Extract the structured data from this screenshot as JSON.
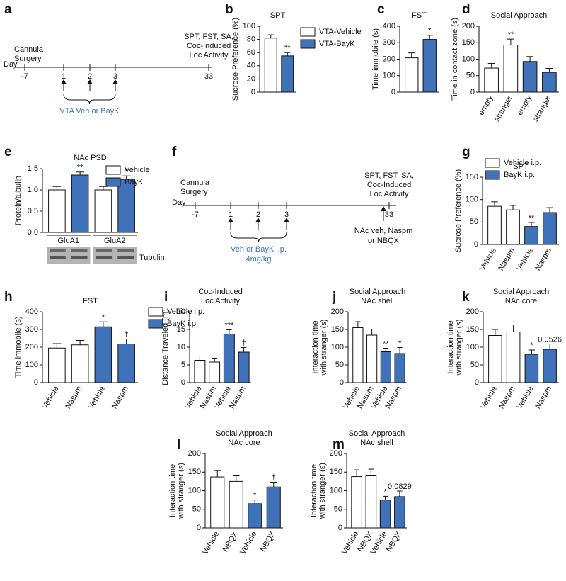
{
  "timelines": [
    {
      "panel": "a",
      "day_label": "Day",
      "days": [
        -7,
        1,
        2,
        3,
        33
      ],
      "start_label": [
        "Cannula",
        "Surgery"
      ],
      "end_label": [
        "SPT, FST, SA,",
        "Coc-Induced",
        "Loc Activity"
      ],
      "treatment_label": [
        "VTA Veh or BayK"
      ]
    },
    {
      "panel": "f",
      "day_label": "Day",
      "days": [
        -7,
        1,
        2,
        3,
        33
      ],
      "start_label": [
        "Cannula",
        "Surgery"
      ],
      "end_label": [
        "SPT, FST, SA,",
        "Coc-Induced",
        "Loc Activity"
      ],
      "treatment_label": [
        "Veh or BayK i.p.",
        "4mg/kg"
      ],
      "end_treatment_label": [
        "NAc veh, Naspm",
        "or NBQX"
      ]
    }
  ],
  "chart_data": [
    {
      "type": "bar",
      "panel": "b",
      "title": [
        "SPT"
      ],
      "ylabel": [
        "Sucrose Preference (%)"
      ],
      "categories": [
        null,
        null
      ],
      "values": [
        82,
        55
      ],
      "errors": [
        5,
        5
      ],
      "annotations": [
        null,
        "**"
      ],
      "bar_colors": [
        "#ffffff",
        "#3f72b8"
      ],
      "ylim": [
        0,
        100
      ],
      "yticks": [
        0,
        20,
        40,
        60,
        80,
        100
      ],
      "legend": [
        {
          "name": "VTA-Vehicle",
          "color": "#ffffff"
        },
        {
          "name": "VTA-BayK",
          "color": "#3f72b8"
        }
      ]
    },
    {
      "type": "bar",
      "panel": "c",
      "title": [
        "FST"
      ],
      "ylabel": [
        "Time immobile (s)"
      ],
      "categories": [
        null,
        null
      ],
      "values": [
        208,
        320
      ],
      "errors": [
        30,
        25
      ],
      "annotations": [
        null,
        "*"
      ],
      "bar_colors": [
        "#ffffff",
        "#3f72b8"
      ],
      "ylim": [
        0,
        400
      ],
      "yticks": [
        0,
        100,
        200,
        300,
        400
      ]
    },
    {
      "type": "bar",
      "panel": "d",
      "title": [
        "Social Approach"
      ],
      "ylabel": [
        "Time in contact zone (s)"
      ],
      "categories": [
        "empty",
        "stranger",
        "empty",
        "stranger"
      ],
      "values": [
        73,
        143,
        93,
        60
      ],
      "errors": [
        14,
        18,
        15,
        12
      ],
      "annotations": [
        null,
        "**",
        null,
        null
      ],
      "bar_colors": [
        "#ffffff",
        "#ffffff",
        "#3f72b8",
        "#3f72b8"
      ],
      "ylim": [
        0,
        200
      ],
      "yticks": [
        0,
        50,
        100,
        150,
        200
      ]
    },
    {
      "type": "bar",
      "panel": "e",
      "title": [
        "NAc PSD"
      ],
      "ylabel": [
        "Protein/tubulin"
      ],
      "categories": [
        null,
        null,
        null,
        null
      ],
      "group_labels": [
        "GluA1",
        "GluA2"
      ],
      "values": [
        1.0,
        1.35,
        1.0,
        1.25
      ],
      "errors": [
        0.08,
        0.07,
        0.08,
        0.08
      ],
      "annotations": [
        null,
        "**",
        null,
        "*"
      ],
      "bar_colors": [
        "#ffffff",
        "#3f72b8",
        "#ffffff",
        "#3f72b8"
      ],
      "ylim": [
        0,
        1.5
      ],
      "yticks": [
        {
          "value": 0,
          "label": "0.0"
        },
        {
          "value": 0.5,
          "label": "0.5"
        },
        {
          "value": 1,
          "label": "1.0"
        },
        {
          "value": 1.5,
          "label": "1.5"
        }
      ],
      "legend": [
        {
          "name": "Vehicle",
          "color": "#ffffff"
        },
        {
          "name": "BayK",
          "color": "#3f72b8"
        }
      ],
      "blot_label": "Tubulin"
    },
    {
      "type": "bar",
      "panel": "g",
      "title": [
        "SPT"
      ],
      "ylabel": [
        "Sucrose Preference (%)"
      ],
      "categories": [
        "Vehicle",
        "Naspm",
        "Vehicle",
        "Naspm"
      ],
      "values": [
        85,
        77,
        40,
        71
      ],
      "errors": [
        10,
        10,
        9,
        11
      ],
      "annotations": [
        null,
        null,
        "**",
        null
      ],
      "bar_colors": [
        "#ffffff",
        "#ffffff",
        "#3f72b8",
        "#3f72b8"
      ],
      "ylim": [
        0,
        150
      ],
      "yticks": [
        0,
        50,
        100,
        150
      ],
      "legend": [
        {
          "name": "Vehicle i.p.",
          "color": "#ffffff"
        },
        {
          "name": "BayK i.p.",
          "color": "#3f72b8"
        }
      ]
    },
    {
      "type": "bar",
      "panel": "h",
      "title": [
        "FST"
      ],
      "ylabel": [
        "Time immobile (s)"
      ],
      "categories": [
        "Vehicle",
        "Naspm",
        "Vehicle",
        "Naspm"
      ],
      "values": [
        195,
        213,
        315,
        218
      ],
      "errors": [
        25,
        25,
        28,
        28
      ],
      "annotations": [
        null,
        null,
        "*",
        "†"
      ],
      "bar_colors": [
        "#ffffff",
        "#ffffff",
        "#3f72b8",
        "#3f72b8"
      ],
      "ylim": [
        0,
        400
      ],
      "yticks": [
        0,
        100,
        200,
        300,
        400
      ],
      "legend": [
        {
          "name": "Vehicle i.p.",
          "color": "#ffffff"
        },
        {
          "name": "BayK i.p.",
          "color": "#3f72b8"
        }
      ]
    },
    {
      "type": "bar",
      "panel": "i",
      "title": [
        "Coc-Induced",
        "Loc Activity"
      ],
      "ylabel": [
        "Distance Traveled (m)"
      ],
      "categories": [
        "Vehicle",
        "Naspm",
        "Vehicle",
        "Naspm"
      ],
      "values": [
        6.3,
        5.8,
        13.7,
        8.6
      ],
      "errors": [
        1.2,
        1.1,
        1.2,
        1.3
      ],
      "annotations": [
        null,
        null,
        "***",
        "†"
      ],
      "bar_colors": [
        "#ffffff",
        "#ffffff",
        "#3f72b8",
        "#3f72b8"
      ],
      "ylim": [
        0,
        20
      ],
      "yticks": [
        0,
        5,
        10,
        15,
        20
      ]
    },
    {
      "type": "bar",
      "panel": "j",
      "title": [
        "Social Approach",
        "NAc shell"
      ],
      "ylabel": [
        "Interaction time",
        "with stranger (s)"
      ],
      "categories": [
        "Vehicle",
        "Naspm",
        "Vehicle",
        "Naspm"
      ],
      "values": [
        155,
        134,
        87,
        82
      ],
      "errors": [
        17,
        17,
        10,
        17
      ],
      "annotations": [
        null,
        null,
        "**",
        "*"
      ],
      "bar_colors": [
        "#ffffff",
        "#ffffff",
        "#3f72b8",
        "#3f72b8"
      ],
      "ylim": [
        0,
        200
      ],
      "yticks": [
        0,
        50,
        100,
        150,
        200
      ]
    },
    {
      "type": "bar",
      "panel": "k",
      "title": [
        "Social Approach",
        "NAc core"
      ],
      "ylabel": [
        "Interaction time",
        "with stranger (s)"
      ],
      "categories": [
        "Vehicle",
        "Naspm",
        "Vehicle",
        "Naspm"
      ],
      "values": [
        133,
        143,
        80,
        94
      ],
      "errors": [
        17,
        20,
        12,
        15
      ],
      "annotations": [
        null,
        null,
        "*",
        "0.0526"
      ],
      "bar_colors": [
        "#ffffff",
        "#ffffff",
        "#3f72b8",
        "#3f72b8"
      ],
      "ylim": [
        0,
        200
      ],
      "yticks": [
        0,
        50,
        100,
        150,
        200
      ]
    },
    {
      "type": "bar",
      "panel": "l",
      "title": [
        "Social Approach",
        "NAc core"
      ],
      "ylabel": [
        "Interaction time",
        "with stranger (s)"
      ],
      "categories": [
        "Vehicle",
        "NBQX",
        "Vehicle",
        "NBQX"
      ],
      "values": [
        137,
        125,
        65,
        110
      ],
      "errors": [
        17,
        15,
        10,
        13
      ],
      "annotations": [
        null,
        null,
        "*",
        "†"
      ],
      "bar_colors": [
        "#ffffff",
        "#ffffff",
        "#3f72b8",
        "#3f72b8"
      ],
      "ylim": [
        0,
        200
      ],
      "yticks": [
        0,
        50,
        100,
        150,
        200
      ]
    },
    {
      "type": "bar",
      "panel": "m",
      "title": [
        "Social Approach",
        "NAc shell"
      ],
      "ylabel": [
        "Interaction time",
        "with stranger (s)"
      ],
      "categories": [
        "Vehicle",
        "NBQX",
        "Vehicle",
        "NBQX"
      ],
      "values": [
        138,
        140,
        75,
        84
      ],
      "errors": [
        18,
        18,
        10,
        15
      ],
      "annotations": [
        null,
        null,
        "*",
        "0.0829"
      ],
      "bar_colors": [
        "#ffffff",
        "#ffffff",
        "#3f72b8",
        "#3f72b8"
      ],
      "ylim": [
        0,
        200
      ],
      "yticks": [
        0,
        50,
        100,
        150,
        200
      ]
    }
  ]
}
